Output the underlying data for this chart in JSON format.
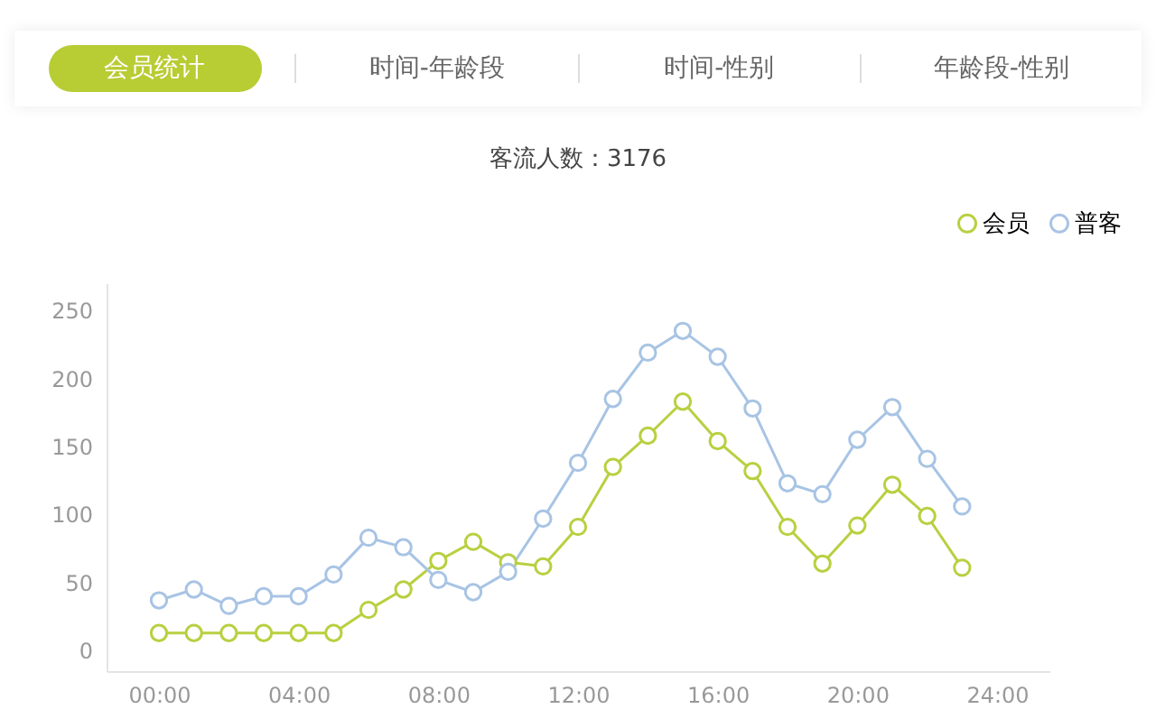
{
  "chart_data": {
    "type": "line",
    "title": "客流人数：3176",
    "annotations": [
      "会员统计",
      "时间-年龄段",
      "时间-性别",
      "年龄段-性别"
    ],
    "x": [
      0,
      1,
      2,
      3,
      4,
      5,
      6,
      7,
      8,
      9,
      10,
      11,
      12,
      13,
      14,
      15,
      16,
      17,
      18,
      19,
      20,
      21,
      22,
      23
    ],
    "series": [
      {
        "name": "会员",
        "color": "#b8d040",
        "values": [
          13,
          13,
          13,
          13,
          13,
          13,
          30,
          45,
          66,
          80,
          65,
          62,
          91,
          135,
          158,
          183,
          154,
          132,
          91,
          64,
          92,
          122,
          99,
          61
        ]
      },
      {
        "name": "普客",
        "color": "#a8c4e4",
        "values": [
          37,
          45,
          33,
          40,
          40,
          56,
          83,
          76,
          52,
          43,
          58,
          97,
          138,
          185,
          219,
          235,
          216,
          178,
          123,
          115,
          155,
          179,
          141,
          106
        ]
      }
    ],
    "xlim": [
      -1.5,
      25.5
    ],
    "xticks": [
      {
        "value": 0,
        "label": "00:00"
      },
      {
        "value": 4,
        "label": "04:00"
      },
      {
        "value": 8,
        "label": "08:00"
      },
      {
        "value": 12,
        "label": "12:00"
      },
      {
        "value": 16,
        "label": "16:00"
      },
      {
        "value": 20,
        "label": "20:00"
      },
      {
        "value": 24,
        "label": "24:00"
      }
    ],
    "ylim": [
      -15,
      270
    ],
    "yticks": [
      0,
      50,
      100,
      150,
      200,
      250
    ],
    "grid": false,
    "legend": "top right",
    "marker": "circle",
    "line_style": "solid"
  }
}
